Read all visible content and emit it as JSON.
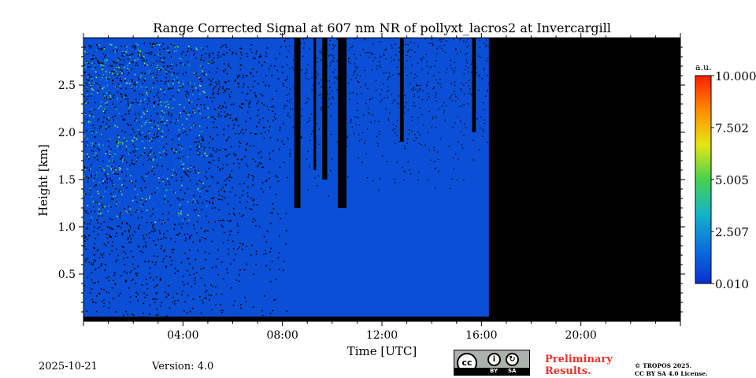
{
  "chart_data": {
    "type": "heatmap",
    "title": "Range Corrected Signal at 607 nm NR of pollyxt_lacros2 at Invercargill",
    "xlabel": "Time [UTC]",
    "ylabel": "Height [km]",
    "x_ticks": [
      {
        "value": 4,
        "label": "04:00"
      },
      {
        "value": 8,
        "label": "08:00"
      },
      {
        "value": 12,
        "label": "12:00"
      },
      {
        "value": 16,
        "label": "16:00"
      },
      {
        "value": 20,
        "label": "20:00"
      }
    ],
    "y_ticks": [
      {
        "value": 0.5,
        "label": "0.5"
      },
      {
        "value": 1.0,
        "label": "1.0"
      },
      {
        "value": 1.5,
        "label": "1.5"
      },
      {
        "value": 2.0,
        "label": "2.0"
      },
      {
        "value": 2.5,
        "label": "2.5"
      }
    ],
    "xlim": [
      0,
      24
    ],
    "ylim": [
      0,
      3.0
    ],
    "data_end_time": 16.3,
    "no_data_color": "#000000",
    "background_value_color": "#0a4fd6",
    "colorbar": {
      "unit": "a.u.",
      "ticks": [
        "10.000",
        "7.502",
        "5.005",
        "2.507",
        "0.010"
      ],
      "colors": [
        "#0a2fd0",
        "#0a6fe0",
        "#14b4c8",
        "#46d250",
        "#e6e614",
        "#ff8c00",
        "#ff1e00"
      ]
    },
    "cloud_columns": [
      {
        "time": 8.6,
        "width": 0.25,
        "from_height": 1.2
      },
      {
        "time": 9.3,
        "width": 0.1,
        "from_height": 1.6
      },
      {
        "time": 9.7,
        "width": 0.2,
        "from_height": 1.5
      },
      {
        "time": 10.4,
        "width": 0.35,
        "from_height": 1.2
      },
      {
        "time": 12.8,
        "width": 0.15,
        "from_height": 1.9
      },
      {
        "time": 15.7,
        "width": 0.15,
        "from_height": 2.0
      }
    ]
  },
  "footer": {
    "date": "2025-10-21",
    "version": "Version: 4.0",
    "license_badge": {
      "cc": "cc",
      "by": "BY",
      "sa": "SA"
    },
    "preliminary": "Preliminary Results.",
    "copyright_line1": "© TROPOS 2025.",
    "copyright_line2": "CC BY SA 4.0 License."
  }
}
